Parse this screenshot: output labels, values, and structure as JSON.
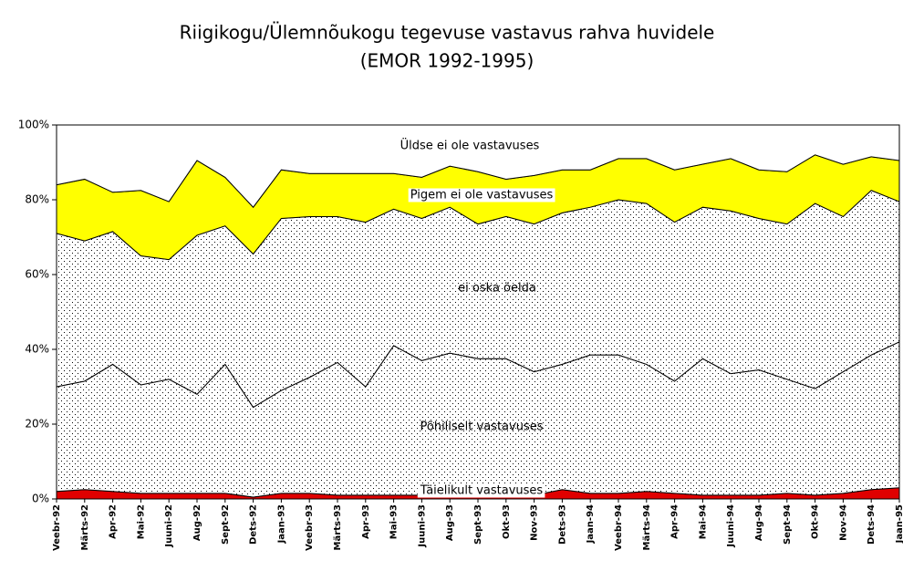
{
  "chart_data": {
    "type": "stacked_area",
    "title": "Riigikogu/Ülemnõukogu tegevuse vastavus rahva huvidele",
    "subtitle": "(EMOR 1992-1995)",
    "categories": [
      "Veebr-92",
      "Märts-92",
      "Apr-92",
      "Mai-92",
      "Juuni-92",
      "Aug-92",
      "Sept-92",
      "Dets-92",
      "Jaan-93",
      "Veebr-93",
      "Märts-93",
      "Apr-93",
      "Mai-93",
      "Juuni-93",
      "Aug-93",
      "Sept-93",
      "Okt-93",
      "Nov-93",
      "Dets-93",
      "Jaan-94",
      "Veebr-94",
      "Märts-94",
      "Apr-94",
      "Mai-94",
      "Juuni-94",
      "Aug-94",
      "Sept-94",
      "Okt-94",
      "Nov-94",
      "Dets-94",
      "Jaan-95"
    ],
    "series": [
      {
        "name": "Täielikult vastavuses",
        "color": "#e00000",
        "pattern": "solid",
        "values": [
          2,
          2.5,
          2,
          1.5,
          1.5,
          1.5,
          1.5,
          0.5,
          1.5,
          1.5,
          1,
          1,
          1,
          1,
          1,
          1,
          1,
          1,
          2.5,
          1.5,
          1.5,
          2,
          1.5,
          1,
          1,
          1,
          1.5,
          1,
          1.5,
          2.5,
          3
        ]
      },
      {
        "name": "Põhiliselt vastavuses",
        "color": "#ffffff",
        "pattern": "dots",
        "values": [
          28,
          29,
          34,
          29,
          30.5,
          26.5,
          34.5,
          24,
          27.5,
          31,
          35.5,
          29,
          40,
          36,
          38,
          36.5,
          36.5,
          33,
          33.5,
          37,
          37,
          34,
          30,
          36.5,
          32.5,
          33.5,
          30.5,
          28.5,
          32.5,
          36,
          39
        ]
      },
      {
        "name": "ei oska öelda",
        "color": "#ffffff",
        "pattern": "dots",
        "values": [
          41,
          37.5,
          35.5,
          34.5,
          32,
          42.5,
          37,
          41,
          46,
          43,
          39,
          44,
          36.5,
          38,
          39,
          36,
          38,
          39.5,
          40.5,
          39.5,
          41.5,
          43,
          42.5,
          40.5,
          43.5,
          40.5,
          41.5,
          49.5,
          41.5,
          44,
          37.5
        ]
      },
      {
        "name": "Pigem ei ole vastavuses",
        "color": "#ffff00",
        "pattern": "solid",
        "values": [
          13,
          16.5,
          10.5,
          17.5,
          15.5,
          20,
          13,
          12.5,
          13,
          11.5,
          11.5,
          13,
          9.5,
          11,
          11,
          14,
          10,
          13,
          11.5,
          10,
          11,
          12,
          14,
          11.5,
          14,
          13,
          14,
          13,
          14,
          9,
          11
        ]
      },
      {
        "name": "Üldse ei ole vastavuses",
        "color": "#ffffff",
        "pattern": "solid",
        "values": [
          16,
          14.5,
          18,
          17.5,
          20.5,
          9.5,
          14,
          22,
          12,
          13,
          13,
          13,
          13,
          14,
          11,
          12.5,
          14.5,
          13.5,
          12,
          12,
          9,
          9,
          12,
          10.5,
          9,
          12,
          12.5,
          8,
          10.5,
          8.5,
          9.5
        ]
      }
    ],
    "ylim": [
      0,
      100
    ],
    "yticks": [
      {
        "value": 0,
        "label": "0%"
      },
      {
        "value": 20,
        "label": "20%"
      },
      {
        "value": 40,
        "label": "40%"
      },
      {
        "value": 60,
        "label": "60%"
      },
      {
        "value": 80,
        "label": "80%"
      },
      {
        "value": 100,
        "label": "100%"
      }
    ]
  }
}
